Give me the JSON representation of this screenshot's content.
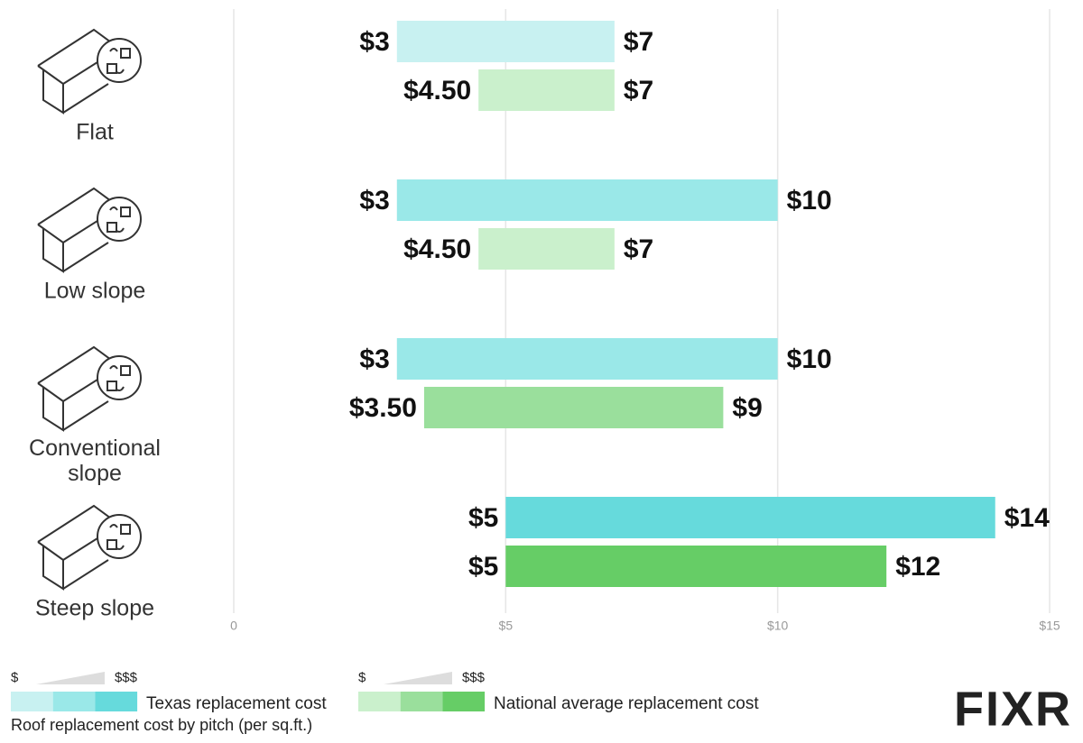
{
  "chart_data": {
    "type": "range_bar",
    "categories": [
      "Flat",
      "Low slope",
      "Conventional slope",
      "Steep slope"
    ],
    "series": [
      {
        "name": "Texas replacement cost",
        "colors": [
          "#c8f1f1",
          "#9ae8e8",
          "#9ae8e8",
          "#66dadc"
        ],
        "shades": [
          "#c8f1f1",
          "#9ae8e8",
          "#66dadc"
        ],
        "low": [
          3,
          3,
          3,
          5
        ],
        "high": [
          7,
          10,
          10,
          14
        ],
        "low_labels": [
          "$3",
          "$3",
          "$3",
          "$5"
        ],
        "high_labels": [
          "$7",
          "$10",
          "$10",
          "$14"
        ]
      },
      {
        "name": "National average replacement cost",
        "colors": [
          "#caf0cc",
          "#caf0cc",
          "#9adf9c",
          "#66cd66"
        ],
        "shades": [
          "#caf0cc",
          "#9adf9c",
          "#66cd66"
        ],
        "low": [
          4.5,
          4.5,
          3.5,
          5
        ],
        "high": [
          7,
          7,
          9,
          12
        ],
        "low_labels": [
          "$4.50",
          "$4.50",
          "$3.50",
          "$5"
        ],
        "high_labels": [
          "$7",
          "$7",
          "$9",
          "$12"
        ]
      }
    ],
    "xlim": [
      0,
      15
    ],
    "xticks": [
      0,
      {
        "value": 5,
        "label": "$5"
      },
      {
        "value": 10,
        "label": "$10"
      },
      {
        "value": 15,
        "label": "$15"
      }
    ],
    "grid": true,
    "legend_scale": [
      "$",
      "$$$"
    ],
    "footnote": "Roof replacement cost by pitch (per sq.ft.)",
    "logo": "FIXR"
  }
}
